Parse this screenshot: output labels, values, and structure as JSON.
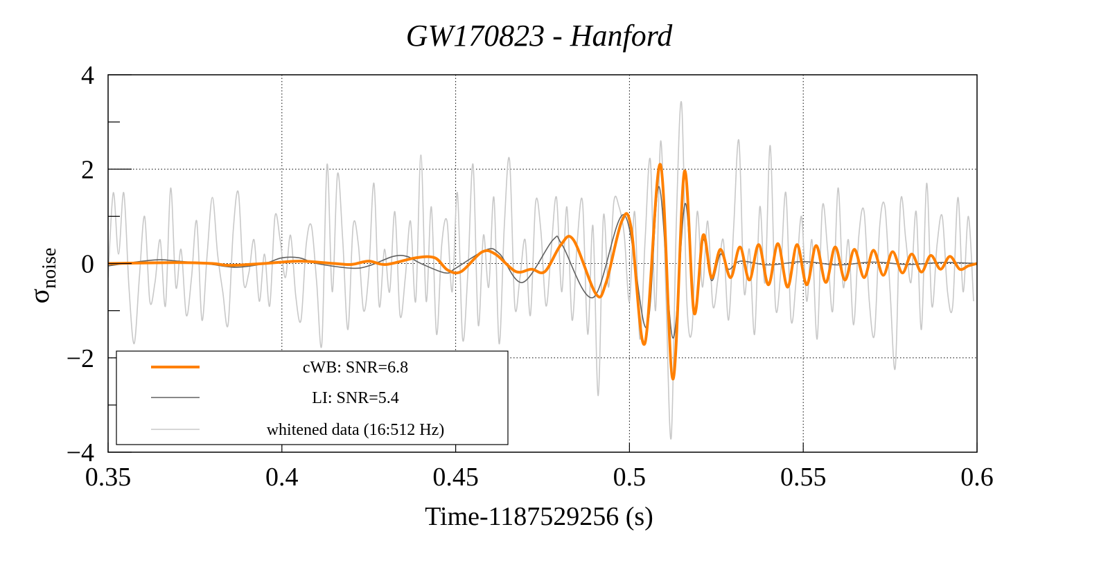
{
  "chart_data": {
    "type": "line",
    "title": "GW170823 - Hanford",
    "xlabel": "Time-1187529256 (s)",
    "ylabel": "σ",
    "ylabel_sub": "noise",
    "xlim": [
      0.35,
      0.6
    ],
    "ylim": [
      -4,
      4
    ],
    "xticks": [
      0.35,
      0.4,
      0.45,
      0.5,
      0.55,
      0.6
    ],
    "xtick_labels": [
      "0.35",
      "0.4",
      "0.45",
      "0.5",
      "0.55",
      "0.6"
    ],
    "yticks": [
      -4,
      -2,
      0,
      2,
      4
    ],
    "ytick_labels": [
      "−4",
      "−2",
      "0",
      "2",
      "4"
    ],
    "y_minor_ticks": [
      -3,
      -1,
      1,
      3
    ],
    "grid": true,
    "legend_position": "bottom-left",
    "series": [
      {
        "name": "whitened data (16:512 Hz)",
        "color": "#c8c8c8",
        "x0": 0.35,
        "dx": 0.0015,
        "y": [
          -0.3,
          1.5,
          0.2,
          1.5,
          -0.5,
          -1.7,
          -0.3,
          1.0,
          -0.8,
          -0.4,
          0.5,
          -0.9,
          1.6,
          -0.5,
          0.3,
          -1.1,
          -0.3,
          0.9,
          -1.2,
          0.2,
          1.4,
          0.2,
          -0.6,
          -1.3,
          0.7,
          1.5,
          -0.4,
          -0.2,
          0.5,
          -0.8,
          0.2,
          -0.9,
          1.0,
          0.5,
          -0.3,
          0.6,
          -0.7,
          -1.2,
          0.4,
          0.8,
          -0.4,
          -1.7,
          2.1,
          -0.6,
          1.9,
          0.5,
          -1.4,
          0.8,
          0.4,
          -1.0,
          -0.2,
          1.7,
          -0.9,
          0.3,
          -0.6,
          1.1,
          -1.1,
          -0.3,
          0.9,
          -0.8,
          2.3,
          -0.8,
          1.2,
          -1.5,
          0.4,
          0.9,
          -0.6,
          1.5,
          -1.6,
          -0.2,
          2.1,
          -1.3,
          0.6,
          -0.5,
          1.4,
          -1.7,
          0.8,
          2.2,
          -0.9,
          -0.3,
          0.5,
          -1.1,
          1.3,
          0.7,
          -0.9,
          0.3,
          1.4,
          -0.6,
          1.2,
          -1.2,
          0.5,
          1.3,
          -1.5,
          0.8,
          -2.8,
          1.0,
          -0.5,
          1.3,
          1.2,
          0.6,
          -0.8,
          1.1,
          -1.6,
          0.5,
          2.2,
          -1.0,
          2.6,
          -0.7,
          -3.7,
          0.9,
          3.4,
          -0.8,
          -1.4,
          1.1,
          -0.5,
          0.9,
          -0.9,
          -0.3,
          0.5,
          -1.2,
          0.8,
          2.6,
          -0.6,
          0.3,
          -1.5,
          1.2,
          -0.4,
          2.5,
          -0.9,
          -0.2,
          1.5,
          -1.2,
          -0.3,
          1.0,
          -0.8,
          0.5,
          -1.6,
          1.2,
          0.3,
          -1.0,
          1.6,
          -0.5,
          0.5,
          -1.3,
          0.6,
          1.1,
          -0.8,
          -1.5,
          0.8,
          1.2,
          -0.6,
          -2.2,
          1.3,
          0.5,
          -0.4,
          1.1,
          -1.4,
          1.7,
          -0.9,
          0.4,
          1.0,
          -0.6,
          -0.9,
          1.4,
          -0.6,
          1.0,
          -0.8
        ]
      },
      {
        "name": "LI: SNR=5.4",
        "color": "#606060",
        "points": [
          [
            0.35,
            -0.05
          ],
          [
            0.355,
            0.0
          ],
          [
            0.36,
            0.05
          ],
          [
            0.365,
            0.08
          ],
          [
            0.37,
            0.05
          ],
          [
            0.375,
            0.02
          ],
          [
            0.38,
            -0.02
          ],
          [
            0.387,
            -0.08
          ],
          [
            0.395,
            0.0
          ],
          [
            0.4,
            0.12
          ],
          [
            0.405,
            0.12
          ],
          [
            0.41,
            0.0
          ],
          [
            0.42,
            -0.1
          ],
          [
            0.425,
            -0.05
          ],
          [
            0.432,
            0.15
          ],
          [
            0.436,
            0.15
          ],
          [
            0.44,
            0.0
          ],
          [
            0.447,
            -0.2
          ],
          [
            0.45,
            -0.1
          ],
          [
            0.4588,
            0.29
          ],
          [
            0.4627,
            0.2
          ],
          [
            0.4693,
            -0.4
          ],
          [
            0.478,
            0.5
          ],
          [
            0.4806,
            0.4
          ],
          [
            0.4896,
            -0.72
          ],
          [
            0.4985,
            1.03
          ],
          [
            0.5049,
            -1.36
          ],
          [
            0.5085,
            1.63
          ],
          [
            0.5125,
            -1.58
          ],
          [
            0.516,
            1.27
          ],
          [
            0.5186,
            -1.0
          ],
          [
            0.5212,
            0.5
          ],
          [
            0.5236,
            -0.36
          ],
          [
            0.5262,
            0.2
          ],
          [
            0.5285,
            -0.12
          ],
          [
            0.532,
            0.05
          ],
          [
            0.54,
            -0.03
          ],
          [
            0.55,
            0.04
          ],
          [
            0.56,
            -0.03
          ],
          [
            0.57,
            0.03
          ],
          [
            0.58,
            -0.02
          ],
          [
            0.59,
            0.02
          ],
          [
            0.6,
            0.0
          ]
        ]
      },
      {
        "name": "cWB: SNR=6.8",
        "color": "#ff8000",
        "points": [
          [
            0.35,
            0.0
          ],
          [
            0.37,
            0.02
          ],
          [
            0.38,
            0.0
          ],
          [
            0.385,
            -0.04
          ],
          [
            0.395,
            0.0
          ],
          [
            0.405,
            0.05
          ],
          [
            0.415,
            0.0
          ],
          [
            0.42,
            -0.02
          ],
          [
            0.425,
            0.05
          ],
          [
            0.43,
            -0.02
          ],
          [
            0.4385,
            0.12
          ],
          [
            0.444,
            0.12
          ],
          [
            0.4477,
            -0.14
          ],
          [
            0.4516,
            -0.17
          ],
          [
            0.4575,
            0.24
          ],
          [
            0.4614,
            0.2
          ],
          [
            0.4673,
            -0.17
          ],
          [
            0.4718,
            -0.12
          ],
          [
            0.4757,
            -0.17
          ],
          [
            0.4803,
            0.4
          ],
          [
            0.4839,
            0.5
          ],
          [
            0.4904,
            -0.65
          ],
          [
            0.4933,
            -0.4
          ],
          [
            0.4978,
            0.9
          ],
          [
            0.5005,
            0.75
          ],
          [
            0.5044,
            -1.7
          ],
          [
            0.5089,
            2.1
          ],
          [
            0.5125,
            -2.45
          ],
          [
            0.5158,
            1.95
          ],
          [
            0.5186,
            -1.05
          ],
          [
            0.5212,
            0.6
          ],
          [
            0.5236,
            -0.3
          ],
          [
            0.5262,
            0.3
          ],
          [
            0.5291,
            -0.3
          ],
          [
            0.5318,
            0.35
          ],
          [
            0.5345,
            -0.35
          ],
          [
            0.5372,
            0.4
          ],
          [
            0.54,
            -0.45
          ],
          [
            0.5427,
            0.42
          ],
          [
            0.5455,
            -0.5
          ],
          [
            0.5482,
            0.4
          ],
          [
            0.551,
            -0.45
          ],
          [
            0.5537,
            0.38
          ],
          [
            0.5565,
            -0.4
          ],
          [
            0.5592,
            0.35
          ],
          [
            0.562,
            -0.35
          ],
          [
            0.5647,
            0.3
          ],
          [
            0.5675,
            -0.3
          ],
          [
            0.5702,
            0.28
          ],
          [
            0.573,
            -0.25
          ],
          [
            0.5757,
            0.25
          ],
          [
            0.5785,
            -0.2
          ],
          [
            0.5812,
            0.2
          ],
          [
            0.584,
            -0.18
          ],
          [
            0.5867,
            0.17
          ],
          [
            0.5895,
            -0.12
          ],
          [
            0.5922,
            0.15
          ],
          [
            0.595,
            -0.12
          ],
          [
            0.5975,
            -0.05
          ],
          [
            0.6,
            0.0
          ]
        ]
      }
    ],
    "legend": [
      "cWB: SNR=6.8",
      "LI: SNR=5.4",
      "whitened data (16:512 Hz)"
    ]
  }
}
